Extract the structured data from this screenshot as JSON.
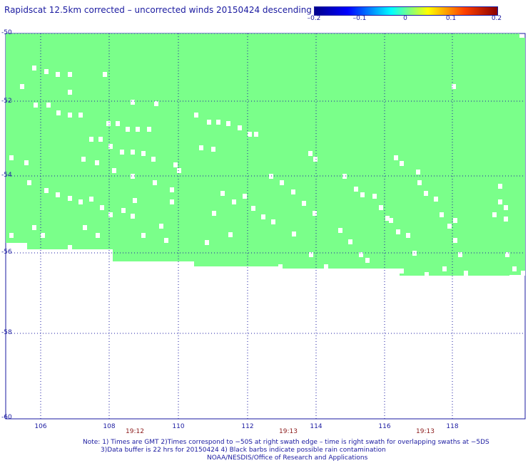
{
  "title": "Rapidscat 12.5km corrected – uncorrected winds 20150424 descending",
  "colorbar": {
    "ticks": [
      "–0.2",
      "–0.1",
      "0",
      "0.1",
      "0.2"
    ]
  },
  "axes": {
    "lat_ticks": [
      "-50",
      "-52",
      "-54",
      "-56",
      "-58",
      "-60"
    ],
    "lon_ticks": [
      "106",
      "108",
      "110",
      "112",
      "114",
      "116",
      "118"
    ],
    "lat_range": [
      -60,
      -50
    ],
    "lon_range": [
      105.5,
      120
    ]
  },
  "times": [
    "19:12",
    "19:13",
    "19:13"
  ],
  "notes": [
    "Note: 1) Times are GMT 2)Times correspond to −50S at right swath edge – time is right swath for overlapping swaths at −5DS",
    "3)Data buffer is 22 hrs for 20150424 4) Black barbs indicate possible rain contamination",
    "NOAA/NESDIS/Office of Research and Applications"
  ],
  "colors": {
    "swath": "#7aff8a",
    "grid": "#1a1aa0",
    "text": "#1a1aa0",
    "time": "#8b1a1a"
  }
}
